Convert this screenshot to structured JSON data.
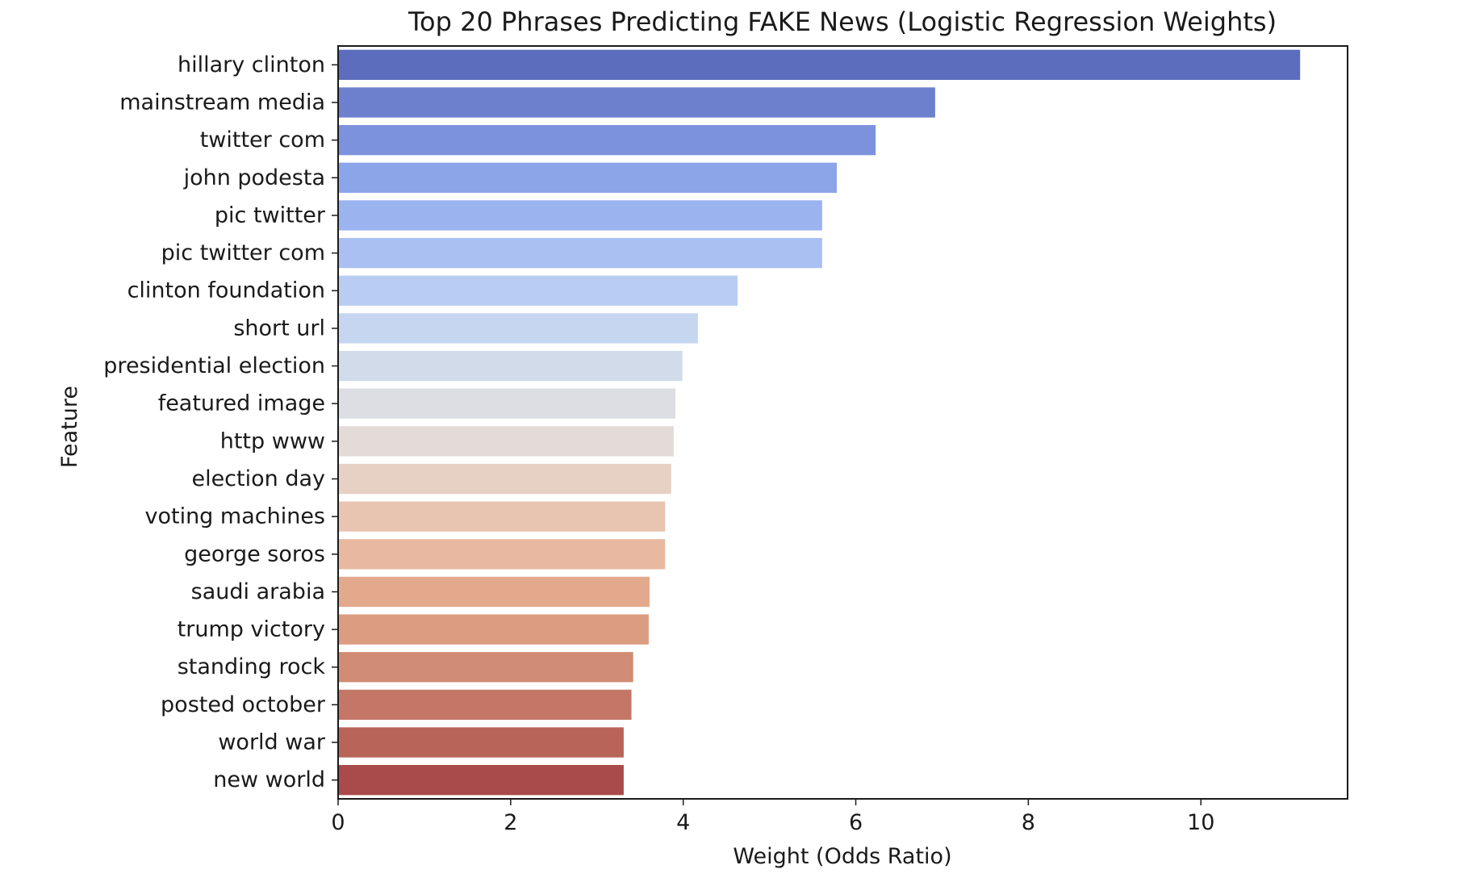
{
  "chart_data": {
    "type": "bar",
    "orientation": "horizontal",
    "title": "Top 20 Phrases Predicting FAKE News (Logistic Regression Weights)",
    "xlabel": "Weight (Odds Ratio)",
    "ylabel": "Feature",
    "xlim": [
      0,
      11.7
    ],
    "xticks": [
      "0",
      "2",
      "4",
      "6",
      "8",
      "10"
    ],
    "grid": false,
    "legend": "none",
    "categories": [
      "hillary clinton",
      "mainstream media",
      "twitter com",
      "john podesta",
      "pic twitter",
      "pic twitter com",
      "clinton foundation",
      "short url",
      "presidential election",
      "featured image",
      "http www",
      "election day",
      "voting machines",
      "george soros",
      "saudi arabia",
      "trump victory",
      "standing rock",
      "posted october",
      "world war",
      "new world"
    ],
    "values": [
      11.15,
      6.92,
      6.23,
      5.78,
      5.61,
      5.61,
      4.63,
      4.17,
      3.99,
      3.91,
      3.89,
      3.86,
      3.79,
      3.79,
      3.61,
      3.6,
      3.42,
      3.4,
      3.31,
      3.31
    ],
    "colors": [
      "#5d6dbd",
      "#6d80ce",
      "#7c92dc",
      "#8ca4e8",
      "#9bb3ef",
      "#aac0f3",
      "#b9cdf3",
      "#c6d6f1",
      "#d1dbe9",
      "#dcdee3",
      "#e3dbd7",
      "#e6d1c4",
      "#e8c5b1",
      "#e8b9a0",
      "#e3a98c",
      "#dc9c81",
      "#d08c74",
      "#c47766",
      "#b86458",
      "#a84b4a"
    ]
  }
}
